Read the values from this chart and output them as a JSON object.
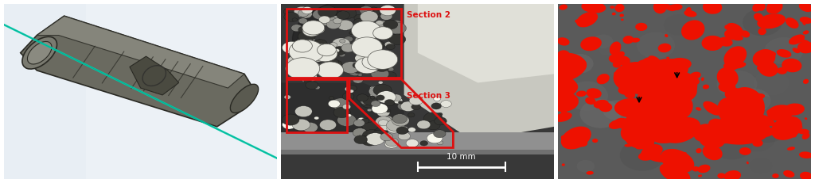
{
  "fig_width": 10.24,
  "fig_height": 2.31,
  "dpi": 100,
  "bg_color": "#ffffff",
  "panel_a_bg": "#e8eef4",
  "panel_b_bg": "#404040",
  "panel_c_bg": "#606060",
  "section2_text": "Section 2",
  "section3_text": "Section 3",
  "scalebar_text": "10 mm",
  "red_color": "#dd1111"
}
